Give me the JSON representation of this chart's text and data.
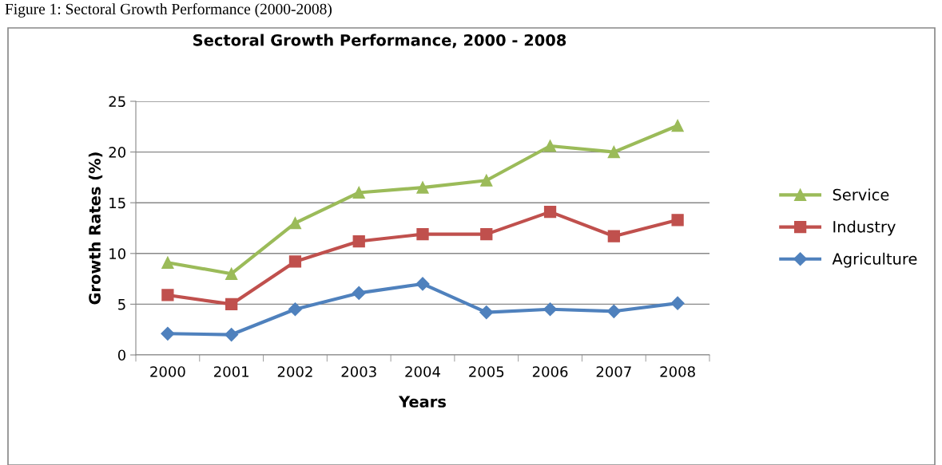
{
  "chart_data": {
    "type": "line",
    "title": "Sectoral Growth Performance, 2000 - 2008",
    "annotations": [
      "Figure 1: Sectoral Growth Performance (2000-2008)"
    ],
    "xlabel": "Years",
    "ylabel": "Growth Rates (%)",
    "categories": [
      "2000",
      "2001",
      "2002",
      "2003",
      "2004",
      "2005",
      "2006",
      "2007",
      "2008"
    ],
    "series": [
      {
        "name": "Service",
        "color": "#9bbb59",
        "marker": "triangle",
        "values": [
          9.1,
          8.0,
          13.0,
          16.0,
          16.5,
          17.2,
          20.6,
          20.0,
          22.6
        ]
      },
      {
        "name": "Industry",
        "color": "#c0504d",
        "marker": "square",
        "values": [
          5.9,
          5.0,
          9.2,
          11.2,
          11.9,
          11.9,
          14.1,
          11.7,
          13.3
        ]
      },
      {
        "name": "Agriculture",
        "color": "#4f81bd",
        "marker": "diamond",
        "values": [
          2.1,
          2.0,
          4.5,
          6.1,
          7.0,
          4.2,
          4.5,
          4.3,
          5.1
        ]
      }
    ],
    "ylim": [
      0,
      25
    ],
    "yticks": [
      0,
      5,
      10,
      15,
      20,
      25
    ],
    "grid": "y",
    "legend": "right",
    "line_style": "solid"
  }
}
